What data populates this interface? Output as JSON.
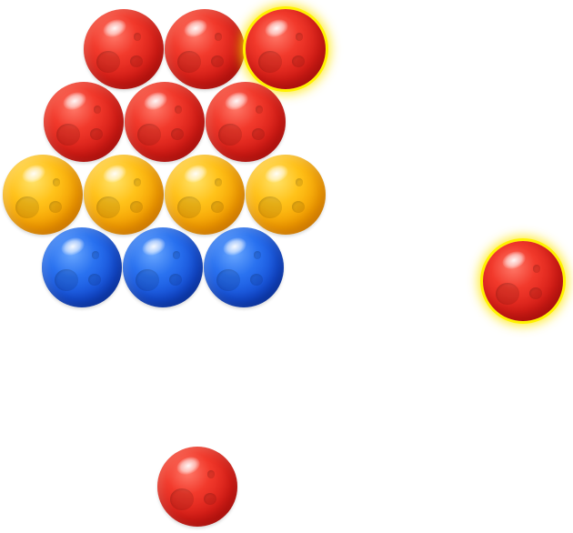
{
  "game": {
    "colors": {
      "red": "#e12a1f",
      "orange": "#ffb400",
      "blue": "#1f5fe6",
      "highlight_glow": "#fff200"
    },
    "grid_rows": [
      {
        "bubbles": [
          {
            "color": "red"
          },
          {
            "color": "red"
          },
          {
            "color": "red",
            "highlighted": true
          }
        ]
      },
      {
        "bubbles": [
          {
            "color": "red"
          },
          {
            "color": "red"
          },
          {
            "color": "red"
          }
        ]
      },
      {
        "bubbles": [
          {
            "color": "orange"
          },
          {
            "color": "orange"
          },
          {
            "color": "orange"
          },
          {
            "color": "orange"
          }
        ]
      },
      {
        "bubbles": [
          {
            "color": "blue"
          },
          {
            "color": "blue"
          },
          {
            "color": "blue"
          }
        ]
      }
    ],
    "moving_bubble": {
      "color": "red",
      "highlighted": true
    },
    "shooter_bubble": {
      "color": "red"
    }
  }
}
